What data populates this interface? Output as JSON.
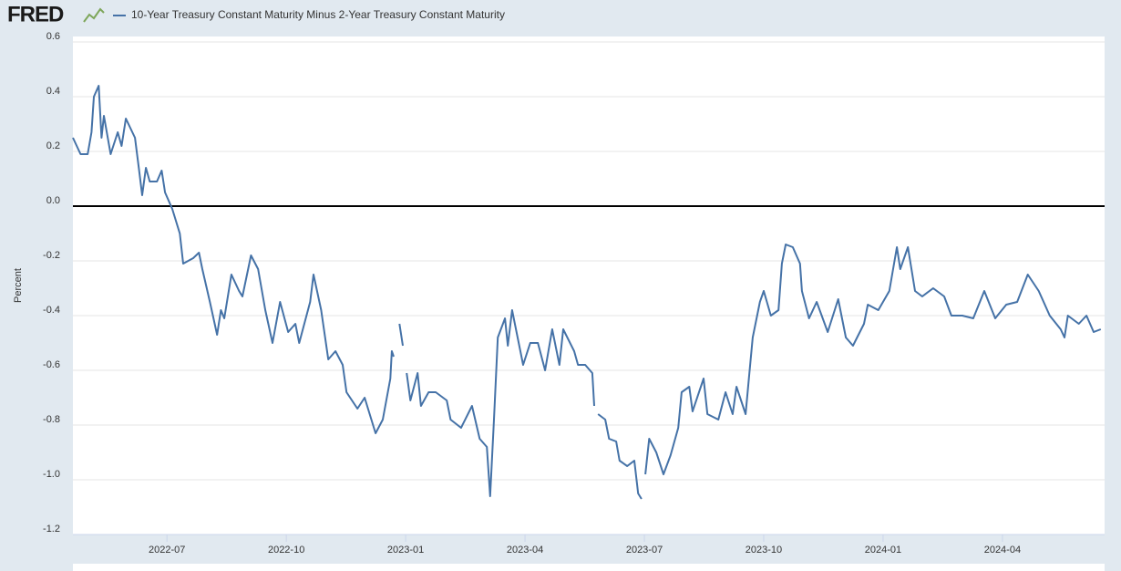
{
  "logo": "FRED",
  "chart_data": {
    "type": "line",
    "y_label": "Percent",
    "xlim": [
      2022.303,
      2024.464
    ],
    "xticks": [
      {
        "value": 2022.5,
        "label": "2022-07"
      },
      {
        "value": 2022.75,
        "label": "2022-10"
      },
      {
        "value": 2023.0,
        "label": "2023-01"
      },
      {
        "value": 2023.25,
        "label": "2023-04"
      },
      {
        "value": 2023.5,
        "label": "2023-07"
      },
      {
        "value": 2023.75,
        "label": "2023-10"
      },
      {
        "value": 2024.0,
        "label": "2024-01"
      },
      {
        "value": 2024.25,
        "label": "2024-04"
      }
    ],
    "ylim": [
      -1.2,
      0.6
    ],
    "yticks": [
      0.6,
      0.4,
      0.2,
      {
        "value": 0,
        "label": "0.0"
      },
      -0.2,
      -0.4,
      -0.6,
      -0.8,
      {
        "value": -1,
        "label": "-1.0"
      },
      -1.2
    ],
    "grid": true,
    "zero_line": true,
    "x": [
      2022.303,
      2022.319,
      2022.334,
      2022.342,
      2022.347,
      2022.357,
      2022.363,
      2022.368,
      2022.382,
      2022.397,
      2022.405,
      2022.414,
      2022.433,
      2022.441,
      2022.448,
      2022.456,
      2022.464,
      2022.479,
      2022.489,
      2022.496,
      2022.511,
      2022.527,
      2022.534,
      2022.555,
      2022.567,
      2022.574,
      2022.59,
      2022.605,
      2022.613,
      2022.62,
      2022.635,
      2022.651,
      2022.658,
      2022.676,
      2022.691,
      2022.706,
      2022.721,
      2022.737,
      2022.754,
      2022.769,
      2022.777,
      2022.8,
      2022.807,
      2022.823,
      2022.838,
      2022.853,
      2022.868,
      2022.876,
      2022.899,
      2022.914,
      2022.937,
      2022.952,
      2022.968,
      2022.971,
      2022.975,
      2022.98,
      2022.987,
      2022.994,
      2023.0,
      2023.002,
      2023.01,
      2023.025,
      2023.032,
      2023.048,
      2023.063,
      2023.086,
      2023.094,
      2023.116,
      2023.139,
      2023.155,
      2023.17,
      2023.177,
      2023.185,
      2023.193,
      2023.208,
      2023.214,
      2023.223,
      2023.246,
      2023.261,
      2023.277,
      2023.292,
      2023.307,
      2023.322,
      2023.33,
      2023.353,
      2023.361,
      2023.376,
      2023.391,
      2023.395,
      2023.398,
      2023.403,
      2023.418,
      2023.426,
      2023.441,
      2023.448,
      2023.464,
      2023.479,
      2023.487,
      2023.494,
      2023.498,
      2023.502,
      2023.51,
      2023.525,
      2023.54,
      2023.555,
      2023.571,
      2023.578,
      2023.594,
      2023.601,
      2023.624,
      2023.632,
      2023.655,
      2023.67,
      2023.685,
      2023.693,
      2023.712,
      2023.719,
      2023.727,
      2023.742,
      2023.75,
      2023.765,
      2023.781,
      2023.788,
      2023.796,
      2023.811,
      2023.826,
      2023.83,
      2023.845,
      2023.861,
      2023.884,
      2023.906,
      2023.922,
      2023.937,
      2023.96,
      2023.968,
      2023.99,
      2024.013,
      2024.029,
      2024.036,
      2024.052,
      2024.067,
      2024.082,
      2024.105,
      2024.128,
      2024.143,
      2024.166,
      2024.189,
      2024.212,
      2024.235,
      2024.258,
      2024.281,
      2024.303,
      2024.326,
      2024.349,
      2024.372,
      2024.38,
      2024.387,
      2024.41,
      2024.426,
      2024.441,
      2024.456
    ],
    "series": [
      {
        "name": "10-Year Treasury Constant Maturity Minus 2-Year Treasury Constant Maturity",
        "color": "#4572a7",
        "values": [
          0.25,
          0.19,
          0.19,
          0.27,
          0.4,
          0.44,
          0.25,
          0.33,
          0.19,
          0.27,
          0.22,
          0.32,
          0.25,
          0.14,
          0.04,
          0.14,
          0.09,
          0.09,
          0.13,
          0.05,
          -0.01,
          -0.1,
          -0.21,
          -0.19,
          -0.17,
          -0.23,
          -0.35,
          -0.47,
          -0.38,
          -0.41,
          -0.25,
          -0.31,
          -0.33,
          -0.18,
          -0.23,
          -0.38,
          -0.5,
          -0.35,
          -0.46,
          -0.43,
          -0.5,
          -0.35,
          -0.25,
          -0.38,
          -0.56,
          -0.53,
          -0.58,
          -0.68,
          -0.74,
          -0.7,
          -0.83,
          -0.78,
          -0.63,
          -0.53,
          -0.55,
          null,
          -0.43,
          -0.51,
          null,
          -0.61,
          -0.71,
          -0.61,
          -0.73,
          -0.68,
          -0.68,
          -0.71,
          -0.78,
          -0.81,
          -0.73,
          -0.85,
          -0.88,
          -1.06,
          -0.78,
          -0.48,
          -0.41,
          -0.51,
          -0.38,
          -0.58,
          -0.5,
          -0.5,
          -0.6,
          -0.45,
          -0.58,
          -0.45,
          -0.53,
          -0.58,
          -0.58,
          -0.61,
          -0.73,
          null,
          -0.76,
          -0.78,
          -0.85,
          -0.86,
          -0.93,
          -0.95,
          -0.93,
          -1.05,
          -1.07,
          null,
          -0.98,
          -0.85,
          -0.9,
          -0.98,
          -0.91,
          -0.81,
          -0.68,
          -0.66,
          -0.75,
          -0.63,
          -0.76,
          -0.78,
          -0.68,
          -0.76,
          -0.66,
          -0.76,
          -0.63,
          -0.48,
          -0.35,
          -0.31,
          -0.4,
          -0.38,
          -0.21,
          -0.14,
          -0.15,
          -0.21,
          -0.31,
          -0.41,
          -0.35,
          -0.46,
          -0.34,
          -0.48,
          -0.51,
          -0.43,
          -0.36,
          -0.38,
          -0.31,
          -0.15,
          -0.23,
          -0.15,
          -0.31,
          -0.33,
          -0.3,
          -0.33,
          -0.4,
          -0.4,
          -0.41,
          -0.31,
          -0.41,
          -0.36,
          -0.35,
          -0.25,
          -0.31,
          -0.4,
          -0.45,
          -0.48,
          -0.4,
          -0.43,
          -0.4,
          -0.46,
          -0.45
        ]
      }
    ]
  }
}
